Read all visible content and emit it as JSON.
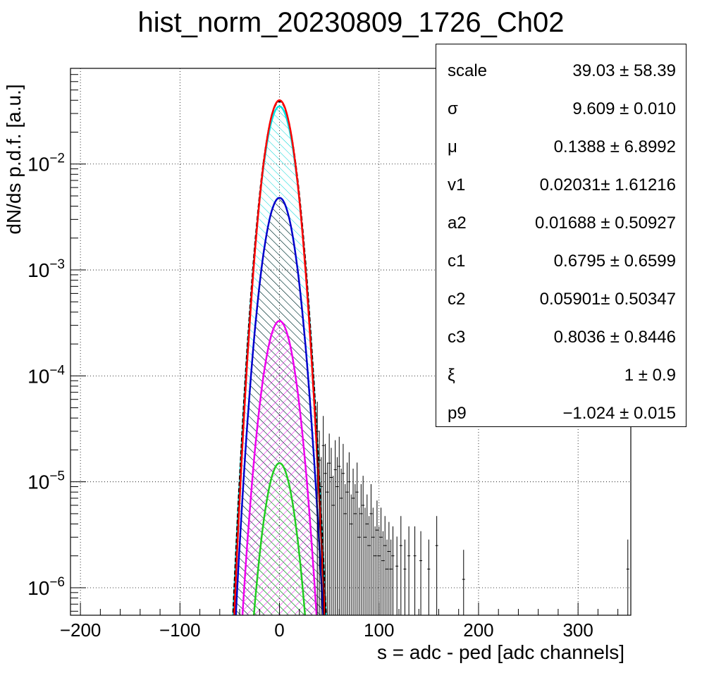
{
  "chart_data": {
    "type": "line",
    "title": "hist_norm_20230809_1726_Ch02",
    "xlabel": "s = adc - ped [adc channels]",
    "ylabel": "dN/ds p.d.f. [a.u.]",
    "xlim": [
      -210,
      353
    ],
    "ylim": [
      5.5e-07,
      0.08
    ],
    "yscale": "log",
    "grid": true,
    "x_ticks": [
      -200,
      -100,
      0,
      100,
      200,
      300
    ],
    "x_tick_labels": [
      "−200",
      "−100",
      "0",
      "100",
      "200",
      "300"
    ],
    "y_ticks": [
      {
        "value": 1e-06,
        "base": "10",
        "exp": "−6"
      },
      {
        "value": 1e-05,
        "base": "10",
        "exp": "−5"
      },
      {
        "value": 0.0001,
        "base": "10",
        "exp": "−4"
      },
      {
        "value": 0.001,
        "base": "10",
        "exp": "−3"
      },
      {
        "value": 0.01,
        "base": "10",
        "exp": "−2"
      }
    ],
    "series": [
      {
        "color": "#ff0000",
        "mu": 0,
        "sigma": 9.609,
        "peak": 0.04,
        "style": "line"
      },
      {
        "color": "#00e5e5",
        "mu": 0,
        "sigma": 9.9,
        "peak": 0.035,
        "style": "hatch-fill"
      },
      {
        "color": "#0000cc",
        "mu": 0,
        "sigma": 10.3,
        "peak": 0.0048,
        "style": "hatch-fill"
      },
      {
        "color": "#ee00ee",
        "mu": 0,
        "sigma": 10.4,
        "peak": 0.00033,
        "style": "hatch-fill"
      },
      {
        "color": "#22cc22",
        "mu": 0,
        "sigma": 10.0,
        "peak": 1.5e-05,
        "style": "hatch-fill"
      }
    ],
    "tail_points": [
      [
        38,
        3e-05
      ],
      [
        40,
        1.6e-05
      ],
      [
        42,
        9e-06
      ],
      [
        44,
        2.2e-05
      ],
      [
        46,
        1.2e-05
      ],
      [
        48,
        8e-06
      ],
      [
        50,
        1.5e-05
      ],
      [
        52,
        1.1e-05
      ],
      [
        54,
        6e-06
      ],
      [
        56,
        1.3e-05
      ],
      [
        58,
        9e-06
      ],
      [
        60,
        1.4e-05
      ],
      [
        62,
        7e-06
      ],
      [
        64,
        1.2e-05
      ],
      [
        66,
        5e-06
      ],
      [
        68,
        8e-06
      ],
      [
        70,
        1e-05
      ],
      [
        72,
        4e-06
      ],
      [
        74,
        7e-06
      ],
      [
        76,
        5e-06
      ],
      [
        78,
        8e-06
      ],
      [
        80,
        3e-06
      ],
      [
        82,
        5e-06
      ],
      [
        84,
        6e-06
      ],
      [
        86,
        3e-06
      ],
      [
        88,
        4e-06
      ],
      [
        90,
        2.5e-06
      ],
      [
        92,
        5e-06
      ],
      [
        94,
        3e-06
      ],
      [
        96,
        2e-06
      ],
      [
        98,
        3.5e-06
      ],
      [
        100,
        2e-06
      ],
      [
        102,
        3e-06
      ],
      [
        104,
        1.8e-06
      ],
      [
        106,
        2.5e-06
      ],
      [
        108,
        1.5e-06
      ],
      [
        110,
        2.2e-06
      ],
      [
        112,
        1.5e-06
      ],
      [
        114,
        2e-06
      ],
      [
        118,
        1.6e-06
      ],
      [
        122,
        2.5e-06
      ],
      [
        126,
        1.5e-06
      ],
      [
        130,
        2e-06
      ],
      [
        136,
        2e-06
      ],
      [
        142,
        1.8e-06
      ],
      [
        150,
        1.5e-06
      ],
      [
        158,
        2.5e-06
      ],
      [
        185,
        1.2e-06
      ],
      [
        350,
        1.5e-06
      ]
    ]
  },
  "stats": [
    {
      "name": "scale",
      "value": "39.03 ± 58.39"
    },
    {
      "name": "σ",
      "value": "9.609 ± 0.010"
    },
    {
      "name": "μ",
      "value": "0.1388 ± 6.8992"
    },
    {
      "name": "v1",
      "value": "0.02031± 1.61216"
    },
    {
      "name": "a2",
      "value": "0.01688 ± 0.50927"
    },
    {
      "name": "c1",
      "value": "0.6795 ± 0.6599"
    },
    {
      "name": "c2",
      "value": "0.05901± 0.50347"
    },
    {
      "name": "c3",
      "value": "0.8036 ± 0.8446"
    },
    {
      "name": "ξ",
      "value": "1 ± 0.9"
    },
    {
      "name": "p9",
      "value": "−1.024 ± 0.015"
    }
  ]
}
